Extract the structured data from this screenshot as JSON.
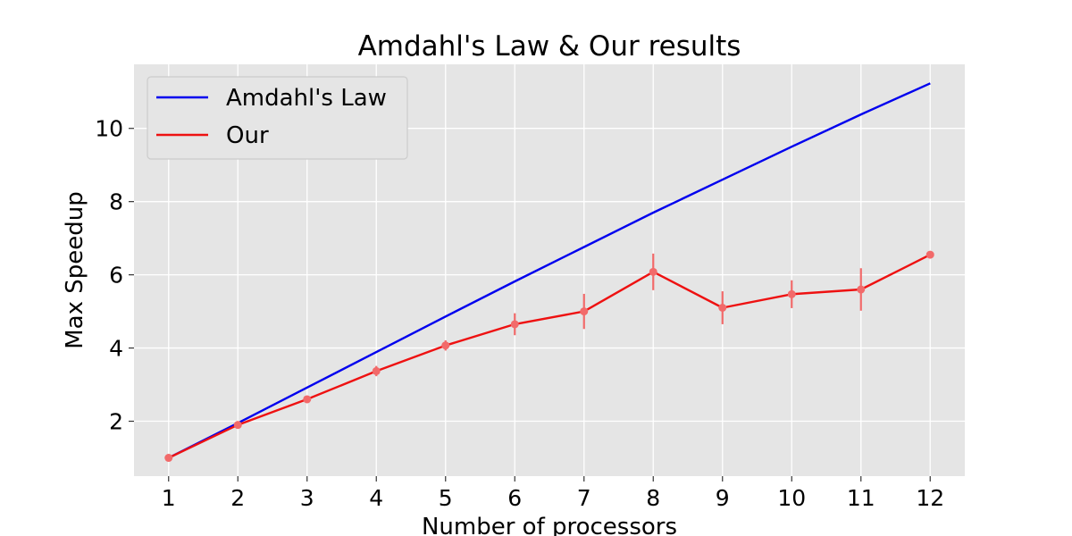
{
  "chart_data": {
    "type": "line",
    "title": "Amdahl's Law & Our results",
    "xlabel": "Number of processors",
    "ylabel": "Max Speedup",
    "x": [
      1,
      2,
      3,
      4,
      5,
      6,
      7,
      8,
      9,
      10,
      11,
      12
    ],
    "xlim": [
      0.5,
      12.5
    ],
    "ylim": [
      0.5,
      11.75
    ],
    "xticks": [
      1,
      2,
      3,
      4,
      5,
      6,
      7,
      8,
      9,
      10,
      11,
      12
    ],
    "yticks": [
      2,
      4,
      6,
      8,
      10
    ],
    "grid": true,
    "legend_position": "top-left",
    "series": [
      {
        "name": "Amdahl's Law",
        "color": "#0000ee",
        "values": [
          1.0,
          1.95,
          2.92,
          3.89,
          4.86,
          5.82,
          6.76,
          7.7,
          8.6,
          9.5,
          10.38,
          11.23
        ],
        "error": null
      },
      {
        "name": "Our",
        "color": "#ee1111",
        "marker_color": "#f26a6a",
        "values": [
          1.0,
          1.9,
          2.6,
          3.37,
          4.07,
          4.65,
          5.0,
          6.08,
          5.1,
          5.47,
          5.6,
          6.55
        ],
        "error": [
          0.05,
          0.06,
          0.08,
          0.14,
          0.14,
          0.3,
          0.48,
          0.5,
          0.45,
          0.38,
          0.58,
          0.08
        ]
      }
    ],
    "colors": {
      "plot_background": "#e5e5e5",
      "grid": "#ffffff",
      "legend_background": "#e5e5e5",
      "legend_border": "#cccccc"
    }
  }
}
